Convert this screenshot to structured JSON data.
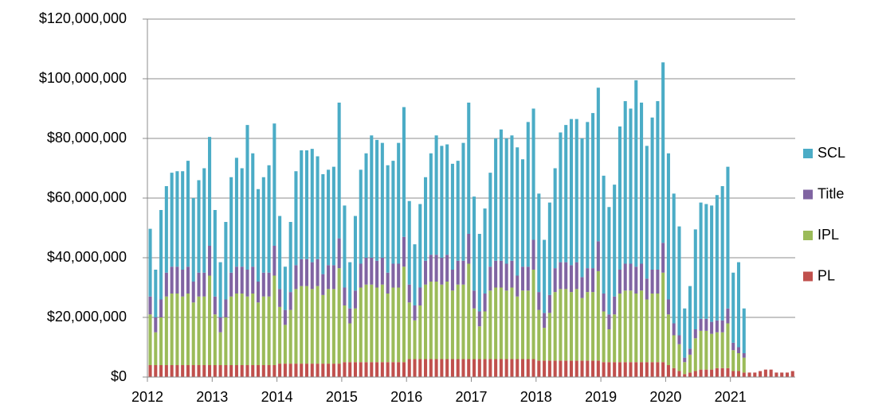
{
  "chart_data": {
    "type": "stacked-bar",
    "categories": [
      "2012",
      null,
      null,
      null,
      null,
      null,
      null,
      null,
      null,
      null,
      null,
      null,
      "2013",
      null,
      null,
      null,
      null,
      null,
      null,
      null,
      null,
      null,
      null,
      null,
      "2014",
      null,
      null,
      null,
      null,
      null,
      null,
      null,
      null,
      null,
      null,
      null,
      "2015",
      null,
      null,
      null,
      null,
      null,
      null,
      null,
      null,
      null,
      null,
      null,
      "2016",
      null,
      null,
      null,
      null,
      null,
      null,
      null,
      null,
      null,
      null,
      null,
      "2017",
      null,
      null,
      null,
      null,
      null,
      null,
      null,
      null,
      null,
      null,
      null,
      "2018",
      null,
      null,
      null,
      null,
      null,
      null,
      null,
      null,
      null,
      null,
      null,
      "2019",
      null,
      null,
      null,
      null,
      null,
      null,
      null,
      null,
      null,
      null,
      null,
      "2020",
      null,
      null,
      null,
      null,
      null,
      null,
      null,
      null,
      null,
      null,
      null,
      "2021",
      null,
      null,
      null,
      null,
      null,
      null,
      null,
      null,
      null,
      null,
      null
    ],
    "series": [
      {
        "name": "PL",
        "color": "#c0504d",
        "values": [
          4000000.0,
          4000000.0,
          4000000.0,
          4000000.0,
          4000000.0,
          4000000.0,
          4000000.0,
          4000000.0,
          4000000.0,
          4000000.0,
          4000000.0,
          4000000.0,
          4000000.0,
          4000000.0,
          4000000.0,
          4000000.0,
          4000000.0,
          4000000.0,
          4000000.0,
          4000000.0,
          4000000.0,
          4000000.0,
          4000000.0,
          4000000.0,
          4500000.0,
          4500000.0,
          4500000.0,
          4500000.0,
          4500000.0,
          4500000.0,
          4500000.0,
          4500000.0,
          4500000.0,
          4500000.0,
          4500000.0,
          4500000.0,
          5000000.0,
          5000000.0,
          5000000.0,
          5000000.0,
          5000000.0,
          5000000.0,
          5000000.0,
          5000000.0,
          5000000.0,
          5000000.0,
          5000000.0,
          5000000.0,
          6000000.0,
          6000000.0,
          6000000.0,
          6000000.0,
          6000000.0,
          6000000.0,
          6000000.0,
          6000000.0,
          6000000.0,
          6000000.0,
          6000000.0,
          6000000.0,
          6000000.0,
          6000000.0,
          6000000.0,
          6000000.0,
          6000000.0,
          6000000.0,
          6000000.0,
          6000000.0,
          6000000.0,
          6000000.0,
          6000000.0,
          6000000.0,
          5500000.0,
          5500000.0,
          5500000.0,
          5500000.0,
          5500000.0,
          5500000.0,
          5500000.0,
          5500000.0,
          5500000.0,
          5500000.0,
          5500000.0,
          5500000.0,
          5000000.0,
          5000000.0,
          5000000.0,
          5000000.0,
          5000000.0,
          5000000.0,
          5000000.0,
          5000000.0,
          5000000.0,
          5000000.0,
          5000000.0,
          5000000.0,
          4000000.0,
          3000000.0,
          2000000.0,
          1000000.0,
          1500000.0,
          2000000.0,
          2500000.0,
          2500000.0,
          2500000.0,
          3000000.0,
          3000000.0,
          3000000.0,
          2000000.0,
          2000000.0,
          1500000.0,
          1500000.0,
          1500000.0,
          2000000.0,
          2500000.0,
          2500000.0,
          1500000.0,
          1500000.0,
          1500000.0,
          2000000.0
        ]
      },
      {
        "name": "IPL",
        "color": "#9bbb59",
        "values": [
          17000000.0,
          11000000.0,
          16000000.0,
          23000000.0,
          24000000.0,
          24000000.0,
          23000000.0,
          24000000.0,
          21000000.0,
          23000000.0,
          23000000.0,
          30000000.0,
          17000000.0,
          11000000.0,
          16000000.0,
          23000000.0,
          24000000.0,
          24000000.0,
          23000000.0,
          24000000.0,
          21000000.0,
          23000000.0,
          23000000.0,
          30000000.0,
          19000000.0,
          13000000.0,
          18000000.0,
          25000000.0,
          26000000.0,
          26000000.0,
          25000000.0,
          26000000.0,
          23000000.0,
          25000000.0,
          25000000.0,
          32000000.0,
          19000000.0,
          13000000.0,
          18000000.0,
          25000000.0,
          26000000.0,
          26000000.0,
          25000000.0,
          26000000.0,
          23000000.0,
          25000000.0,
          25000000.0,
          32000000.0,
          19000000.0,
          13000000.0,
          18000000.0,
          25000000.0,
          26000000.0,
          26000000.0,
          25000000.0,
          26000000.0,
          23000000.0,
          25000000.0,
          25000000.0,
          32000000.0,
          17000000.0,
          11000000.0,
          16000000.0,
          23000000.0,
          24000000.0,
          24000000.0,
          23000000.0,
          24000000.0,
          21000000.0,
          23000000.0,
          23000000.0,
          30000000.0,
          17000000.0,
          11000000.0,
          16000000.0,
          23000000.0,
          24000000.0,
          24000000.0,
          23000000.0,
          24000000.0,
          21000000.0,
          23000000.0,
          23000000.0,
          30000000.0,
          17000000.0,
          11000000.0,
          16000000.0,
          23000000.0,
          24000000.0,
          24000000.0,
          23000000.0,
          24000000.0,
          21000000.0,
          23000000.0,
          23000000.0,
          30000000.0,
          17000000.0,
          11000000.0,
          9000000.0,
          4000000.0,
          6000000.0,
          11000000.0,
          13000000.0,
          13000000.0,
          12000000.0,
          12000000.0,
          12000000.0,
          15000000.0,
          7000000.0,
          6000000.0,
          5000000.0,
          0,
          0,
          0,
          0,
          0,
          0,
          0,
          0,
          0
        ]
      },
      {
        "name": "Title",
        "color": "#8064a2",
        "values": [
          6000000.0,
          5000000.0,
          6000000.0,
          8000000.0,
          9000000.0,
          9000000.0,
          9000000.0,
          9000000.0,
          7000000.0,
          8000000.0,
          8000000.0,
          10000000.0,
          6000000.0,
          5000000.0,
          6000000.0,
          8000000.0,
          9000000.0,
          9000000.0,
          9000000.0,
          9000000.0,
          7000000.0,
          8000000.0,
          8000000.0,
          10000000.0,
          6000000.0,
          5000000.0,
          6000000.0,
          8000000.0,
          9000000.0,
          9000000.0,
          9000000.0,
          9000000.0,
          7000000.0,
          8000000.0,
          8000000.0,
          10000000.0,
          6000000.0,
          5000000.0,
          6000000.0,
          8000000.0,
          9000000.0,
          9000000.0,
          9000000.0,
          9000000.0,
          7000000.0,
          8000000.0,
          8000000.0,
          10000000.0,
          6000000.0,
          5000000.0,
          6000000.0,
          8000000.0,
          9000000.0,
          9000000.0,
          9000000.0,
          9000000.0,
          7000000.0,
          8000000.0,
          8000000.0,
          10000000.0,
          6000000.0,
          5000000.0,
          6000000.0,
          8000000.0,
          9000000.0,
          9000000.0,
          9000000.0,
          9000000.0,
          7000000.0,
          8000000.0,
          8000000.0,
          10000000.0,
          6000000.0,
          5000000.0,
          6000000.0,
          8000000.0,
          9000000.0,
          9000000.0,
          9000000.0,
          9000000.0,
          7000000.0,
          8000000.0,
          8000000.0,
          10000000.0,
          6000000.0,
          5000000.0,
          6000000.0,
          8000000.0,
          9000000.0,
          9000000.0,
          9000000.0,
          9000000.0,
          7000000.0,
          8000000.0,
          8000000.0,
          10000000.0,
          5000000.0,
          4000000.0,
          3000000.0,
          1500000.0,
          2000000.0,
          3000000.0,
          4000000.0,
          4000000.0,
          4000000.0,
          4000000.0,
          4000000.0,
          5000000.0,
          2500000.0,
          2000000.0,
          1500000.0,
          0,
          0,
          0,
          0,
          0,
          0,
          0,
          0,
          0
        ]
      },
      {
        "name": "SCL",
        "color": "#4bacc6",
        "values": [
          22700000.0,
          16000000.0,
          30000000.0,
          29000000.0,
          31500000.0,
          32000000.0,
          33000000.0,
          35500000.0,
          28000000.0,
          31000000.0,
          35000000.0,
          36500000.0,
          29000000.0,
          18500000.0,
          26000000.0,
          32000000.0,
          36500000.0,
          33000000.0,
          48500000.0,
          38000000.0,
          31000000.0,
          32000000.0,
          36000000.0,
          41000000.0,
          24500000.0,
          14500000.0,
          23500000.0,
          31500000.0,
          36500000.0,
          36500000.0,
          38000000.0,
          34500000.0,
          33500000.0,
          32000000.0,
          33000000.0,
          45500000.0,
          27500000.0,
          15500000.0,
          25000000.0,
          31500000.0,
          35000000.0,
          41000000.0,
          40500000.0,
          38500000.0,
          36000000.0,
          34500000.0,
          40500000.0,
          43500000.0,
          28000000.0,
          20500000.0,
          28000000.0,
          28000000.0,
          34000000.0,
          40000000.0,
          37500000.0,
          37000000.0,
          35500000.0,
          33500000.0,
          39500000.0,
          44000000.0,
          31500000.0,
          26000000.0,
          28500000.0,
          31500000.0,
          41000000.0,
          44000000.0,
          42000000.0,
          42000000.0,
          43000000.0,
          36000000.0,
          48500000.0,
          44000000.0,
          33000000.0,
          24500000.0,
          31000000.0,
          33500000.0,
          43500000.0,
          46000000.0,
          49000000.0,
          48000000.0,
          46500000.0,
          49000000.0,
          52000000.0,
          51500000.0,
          39500000.0,
          36000000.0,
          37500000.0,
          48000000.0,
          54500000.0,
          52000000.0,
          62500000.0,
          54000000.0,
          44500000.0,
          51000000.0,
          56500000.0,
          60500000.0,
          49000000.0,
          43500000.0,
          36500000.0,
          16500000.0,
          21000000.0,
          33500000.0,
          39000000.0,
          38500000.0,
          39000000.0,
          42000000.0,
          45000000.0,
          47500000.0,
          23500000.0,
          28500000.0,
          15000000.0,
          0,
          0,
          0,
          0,
          0,
          0,
          0,
          0,
          0
        ]
      }
    ],
    "ylim": [
      0,
      120000000
    ],
    "yticks": [
      {
        "value": 0,
        "label": "$0"
      },
      {
        "value": 20000000,
        "label": "$20,000,000"
      },
      {
        "value": 40000000,
        "label": "$40,000,000"
      },
      {
        "value": 60000000,
        "label": "$60,000,000"
      },
      {
        "value": 80000000,
        "label": "$80,000,000"
      },
      {
        "value": 100000000,
        "label": "$100,000,000"
      },
      {
        "value": 120000000,
        "label": "$120,000,000"
      }
    ],
    "grid": true,
    "legend": "right"
  }
}
